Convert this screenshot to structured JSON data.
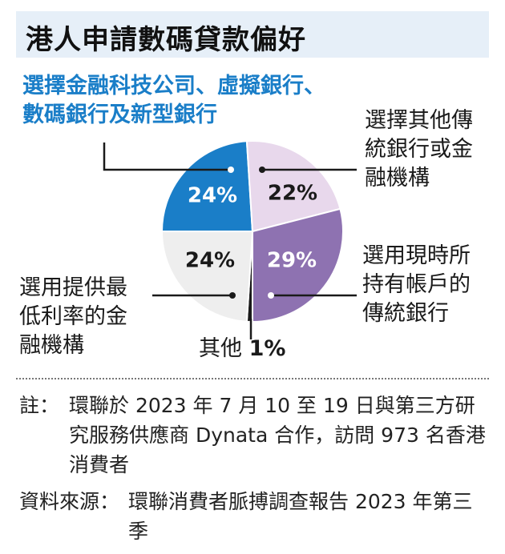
{
  "chart_data": {
    "type": "pie",
    "title": "港人申請數碼貸款偏好",
    "categories": [
      "選擇金融科技公司、虛擬銀行、數碼銀行及新型銀行",
      "選擇其他傳統銀行或金融機構",
      "選用現時所持有帳戶的傳統銀行",
      "其他",
      "選用提供最低利率的金融機構"
    ],
    "values": [
      24,
      22,
      29,
      1,
      24
    ],
    "labels": [
      "24%",
      "22%",
      "29%",
      "1%",
      "24%"
    ],
    "unit": "%",
    "colors": [
      "#1a7ec8",
      "#e8d8ec",
      "#8e72b1",
      "#1a1a1a",
      "#eeeeee"
    ],
    "label_colors": [
      "#ffffff",
      "#1a1a1a",
      "#ffffff",
      "#1a1a1a",
      "#1a1a1a"
    ]
  },
  "callouts": {
    "fintech": "選擇金融科技公司、虛擬銀行、\n數碼銀行及新型銀行",
    "other_traditional": "選擇其他傳\n統銀行或金\n融機構",
    "current_bank": "選用現時所\n持有帳戶的\n傳統銀行",
    "other_prefix": "其他",
    "lowest_rate": "選用提供最\n低利率的金\n融機構"
  },
  "notes": {
    "note_label": "註：",
    "note_text": "環聯於 2023 年 7 月 10 至 19 日與第三方研究服務供應商 Dynata 合作，訪問 973 名香港消費者",
    "source_label": "資料來源：",
    "source_text": "環聯消費者脈搏調查報告 2023 年第三季"
  }
}
